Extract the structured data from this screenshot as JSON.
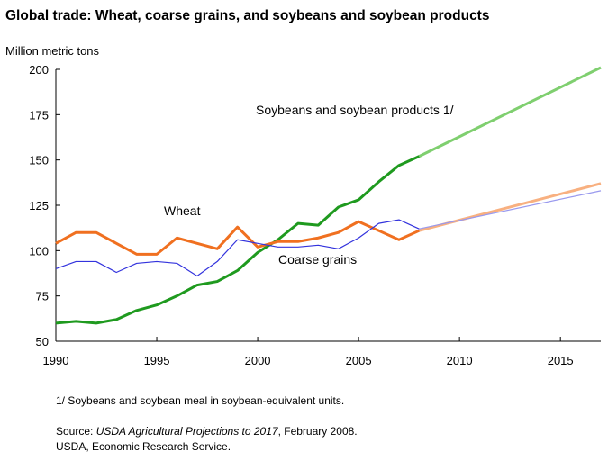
{
  "chart_data": {
    "type": "line",
    "title": "Global trade: Wheat, coarse grains, and soybeans and soybean products",
    "ylabel": "Million metric tons",
    "xlabel": "",
    "xlim": [
      1990,
      2017
    ],
    "ylim": [
      50,
      200
    ],
    "xticks": [
      1990,
      1995,
      2000,
      2005,
      2010,
      2015
    ],
    "yticks": [
      50,
      75,
      100,
      125,
      150,
      175,
      200
    ],
    "grid": false,
    "series": [
      {
        "name": "Soybeans and soybean products 1/",
        "color": "#1f9a1f",
        "projection_color": "#7fcf6f",
        "x": [
          1990,
          1991,
          1992,
          1993,
          1994,
          1995,
          1996,
          1997,
          1998,
          1999,
          2000,
          2001,
          2002,
          2003,
          2004,
          2005,
          2006,
          2007,
          2008
        ],
        "values": [
          60,
          61,
          60,
          62,
          67,
          70,
          75,
          81,
          83,
          89,
          99,
          106,
          115,
          114,
          124,
          128,
          138,
          147,
          152
        ],
        "projection_x": [
          2008,
          2017
        ],
        "projection_values": [
          152,
          201
        ]
      },
      {
        "name": "Wheat",
        "color": "#f07020",
        "projection_color": "#f8b080",
        "x": [
          1990,
          1991,
          1992,
          1993,
          1994,
          1995,
          1996,
          1997,
          1998,
          1999,
          2000,
          2001,
          2002,
          2003,
          2004,
          2005,
          2006,
          2007,
          2008
        ],
        "values": [
          104,
          110,
          110,
          104,
          98,
          98,
          107,
          104,
          101,
          113,
          102,
          105,
          105,
          107,
          110,
          116,
          111,
          106,
          111
        ],
        "projection_x": [
          2008,
          2017
        ],
        "projection_values": [
          111,
          137
        ]
      },
      {
        "name": "Coarse grains",
        "color": "#3333dd",
        "projection_color": "#9999ee",
        "x": [
          1990,
          1991,
          1992,
          1993,
          1994,
          1995,
          1996,
          1997,
          1998,
          1999,
          2000,
          2001,
          2002,
          2003,
          2004,
          2005,
          2006,
          2007,
          2008
        ],
        "values": [
          90,
          94,
          94,
          88,
          93,
          94,
          93,
          86,
          94,
          106,
          104,
          102,
          102,
          103,
          101,
          107,
          115,
          117,
          112
        ],
        "projection_x": [
          2008,
          2017
        ],
        "projection_values": [
          112,
          133
        ]
      }
    ],
    "annotations": {
      "soy": "Soybeans and soybean products 1/",
      "wheat": "Wheat",
      "coarse": "Coarse grains"
    },
    "footnote": "1/ Soybeans and soybean meal in soybean-equivalent units.",
    "source_prefix": "Source: ",
    "source_title": "USDA Agricultural Projections to 2017",
    "source_suffix": ", February 2008.",
    "source_line2": "USDA, Economic Research Service."
  }
}
